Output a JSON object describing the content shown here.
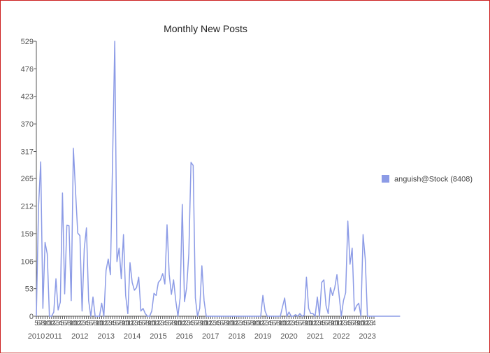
{
  "chart_data": {
    "type": "line",
    "title": "Monthly New Posts",
    "xlabel": "",
    "ylabel": "",
    "y_ticks": [
      0,
      53,
      106,
      159,
      212,
      265,
      317,
      370,
      423,
      476,
      529
    ],
    "ylim": [
      0,
      529
    ],
    "x_start": "2010-05",
    "x_end": "2023-04",
    "year_labels": [
      "2010",
      "2011",
      "2012",
      "2013",
      "2014",
      "2015",
      "2016",
      "2017",
      "2018",
      "2019",
      "2020",
      "2021",
      "2022",
      "2023"
    ],
    "legend_position": "right",
    "grid": false,
    "series": [
      {
        "name": "anguish@Stock (8408)",
        "color": "#8c9be6",
        "values": [
          0,
          210,
          297,
          15,
          142,
          120,
          0,
          0,
          8,
          72,
          12,
          27,
          237,
          43,
          175,
          174,
          30,
          323,
          240,
          160,
          155,
          10,
          130,
          170,
          30,
          0,
          37,
          0,
          0,
          0,
          25,
          0,
          88,
          110,
          80,
          300,
          529,
          105,
          131,
          72,
          157,
          40,
          5,
          103,
          65,
          50,
          55,
          75,
          10,
          15,
          5,
          0,
          0,
          10,
          44,
          40,
          65,
          70,
          82,
          62,
          176,
          80,
          42,
          70,
          30,
          0,
          35,
          215,
          28,
          55,
          120,
          296,
          290,
          35,
          0,
          15,
          97,
          30,
          0,
          0,
          0,
          0,
          0,
          0,
          0,
          0,
          0,
          0,
          0,
          0,
          0,
          0,
          0,
          0,
          0,
          0,
          0,
          0,
          0,
          0,
          0,
          0,
          0,
          0,
          40,
          10,
          0,
          0,
          0,
          0,
          0,
          0,
          0,
          18,
          35,
          0,
          8,
          0,
          0,
          3,
          0,
          5,
          0,
          2,
          75,
          15,
          5,
          5,
          0,
          37,
          0,
          65,
          70,
          20,
          5,
          55,
          40,
          55,
          80,
          40,
          0,
          30,
          45,
          183,
          100,
          131,
          10,
          20,
          25,
          0,
          157,
          110,
          0,
          0,
          0,
          0,
          0,
          0,
          0,
          0,
          0,
          0,
          0,
          0,
          0,
          0,
          0,
          0
        ]
      }
    ]
  }
}
